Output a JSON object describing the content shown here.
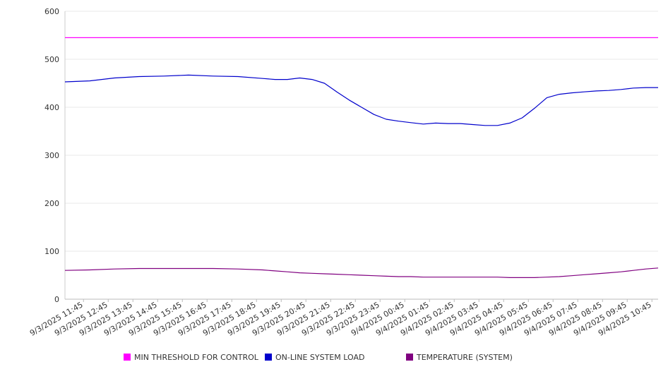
{
  "chart_data": {
    "type": "line",
    "title": "",
    "xlabel": "",
    "ylabel": "",
    "ylim": [
      0,
      600
    ],
    "yticks": [
      0,
      100,
      200,
      300,
      400,
      500,
      600
    ],
    "grid": "horizontal",
    "legend_position": "bottom",
    "x_tick_labels": [
      "9/3/2025 11:45",
      "9/3/2025 12:45",
      "9/3/2025 13:45",
      "9/3/2025 14:45",
      "9/3/2025 15:45",
      "9/3/2025 16:45",
      "9/3/2025 17:45",
      "9/3/2025 18:45",
      "9/3/2025 19:45",
      "9/3/2025 20:45",
      "9/3/2025 21:45",
      "9/3/2025 22:45",
      "9/3/2025 23:45",
      "9/4/2025 00:45",
      "9/4/2025 01:45",
      "9/4/2025 02:45",
      "9/4/2025 03:45",
      "9/4/2025 04:45",
      "9/4/2025 05:45",
      "9/4/2025 06:45",
      "9/4/2025 07:45",
      "9/4/2025 08:45",
      "9/4/2025 09:45",
      "9/4/2025 10:45"
    ],
    "x_range": [
      "9/3/2025 11:00",
      "9/4/2025 11:00"
    ],
    "x": [
      "9/3/2025 11:00",
      "9/3/2025 12:00",
      "9/3/2025 13:00",
      "9/3/2025 14:00",
      "9/3/2025 15:00",
      "9/3/2025 16:00",
      "9/3/2025 17:00",
      "9/3/2025 18:00",
      "9/3/2025 19:00",
      "9/3/2025 19:30",
      "9/3/2025 20:00",
      "9/3/2025 20:30",
      "9/3/2025 21:00",
      "9/3/2025 21:30",
      "9/3/2025 22:00",
      "9/3/2025 22:30",
      "9/3/2025 23:00",
      "9/3/2025 23:30",
      "9/4/2025 00:00",
      "9/4/2025 00:30",
      "9/4/2025 01:00",
      "9/4/2025 01:30",
      "9/4/2025 02:00",
      "9/4/2025 02:30",
      "9/4/2025 03:00",
      "9/4/2025 03:30",
      "9/4/2025 04:00",
      "9/4/2025 04:30",
      "9/4/2025 05:00",
      "9/4/2025 05:30",
      "9/4/2025 06:00",
      "9/4/2025 06:30",
      "9/4/2025 07:00",
      "9/4/2025 07:30",
      "9/4/2025 08:00",
      "9/4/2025 08:30",
      "9/4/2025 09:00",
      "9/4/2025 09:30",
      "9/4/2025 10:00",
      "9/4/2025 10:30",
      "9/4/2025 11:00"
    ],
    "series": [
      {
        "name": "MIN THRESHOLD FOR CONTROL",
        "color": "#ff00ff",
        "values": [
          545,
          545,
          545,
          545,
          545,
          545,
          545,
          545,
          545,
          545,
          545,
          545,
          545,
          545,
          545,
          545,
          545,
          545,
          545,
          545,
          545,
          545,
          545,
          545,
          545,
          545,
          545,
          545,
          545,
          545,
          545,
          545,
          545,
          545,
          545,
          545,
          545,
          545,
          545,
          545,
          545
        ]
      },
      {
        "name": "ON-LINE SYSTEM LOAD",
        "color": "#0000cc",
        "values": [
          453,
          455,
          461,
          464,
          465,
          467,
          465,
          464,
          460,
          458,
          458,
          461,
          458,
          450,
          432,
          415,
          400,
          385,
          375,
          371,
          368,
          365,
          367,
          366,
          366,
          364,
          362,
          362,
          367,
          378,
          398,
          420,
          427,
          430,
          432,
          434,
          435,
          437,
          440,
          441,
          441
        ]
      },
      {
        "name": "TEMPERATURE (SYSTEM)",
        "color": "#800080",
        "values": [
          60,
          61,
          63,
          64,
          64,
          64,
          64,
          63,
          61,
          59,
          57,
          55,
          54,
          53,
          52,
          51,
          50,
          49,
          48,
          47,
          47,
          46,
          46,
          46,
          46,
          46,
          46,
          46,
          45,
          45,
          45,
          46,
          47,
          49,
          51,
          53,
          55,
          57,
          60,
          63,
          65
        ]
      }
    ]
  }
}
